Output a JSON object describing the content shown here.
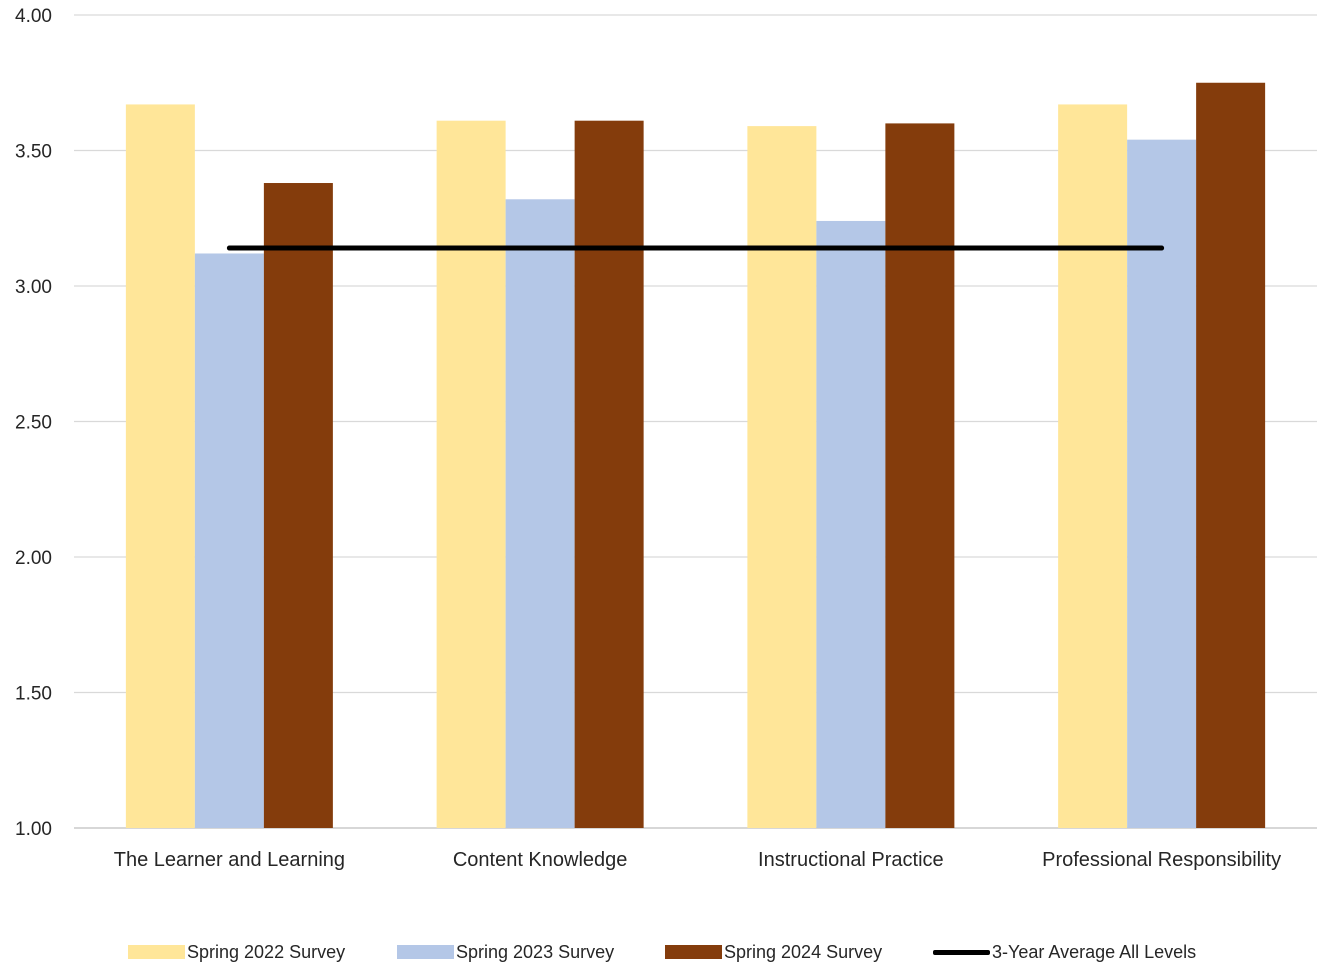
{
  "chart_data": {
    "type": "bar",
    "categories": [
      "The Learner and Learning",
      "Content Knowledge",
      "Instructional Practice",
      "Professional Responsibility"
    ],
    "series": [
      {
        "name": "Spring 2022 Survey",
        "color": "#FFE699",
        "values": [
          3.67,
          3.61,
          3.59,
          3.67
        ]
      },
      {
        "name": "Spring 2023 Survey",
        "color": "#B4C7E7",
        "values": [
          3.12,
          3.32,
          3.24,
          3.54
        ]
      },
      {
        "name": "Spring 2024 Survey",
        "color": "#843C0C",
        "values": [
          3.38,
          3.61,
          3.6,
          3.75
        ]
      }
    ],
    "reference_line": {
      "name": "3-Year Average All Levels",
      "value": 3.14,
      "color": "#000000"
    },
    "ylim": [
      1.0,
      4.0
    ],
    "yticks": [
      "1.00",
      "1.50",
      "2.00",
      "2.50",
      "3.00",
      "3.50",
      "4.00"
    ],
    "grid": true,
    "legend_position": "bottom",
    "title": "",
    "xlabel": "",
    "ylabel": ""
  }
}
